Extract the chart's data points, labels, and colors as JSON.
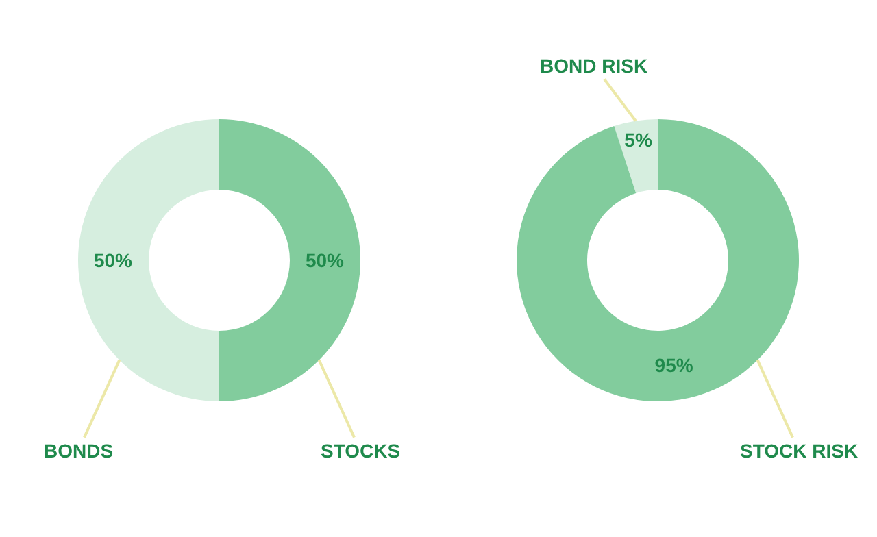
{
  "chart_data": [
    {
      "type": "donut",
      "categories": [
        "BONDS",
        "STOCKS"
      ],
      "values": [
        50,
        50
      ],
      "colors": [
        "#d6eedf",
        "#82cc9d"
      ],
      "value_labels": [
        "50%",
        "50%"
      ]
    },
    {
      "type": "donut",
      "categories": [
        "BOND RISK",
        "STOCK RISK"
      ],
      "values": [
        5,
        95
      ],
      "colors": [
        "#d6eedf",
        "#82cc9d"
      ],
      "value_labels": [
        "5%",
        "95%"
      ]
    }
  ]
}
